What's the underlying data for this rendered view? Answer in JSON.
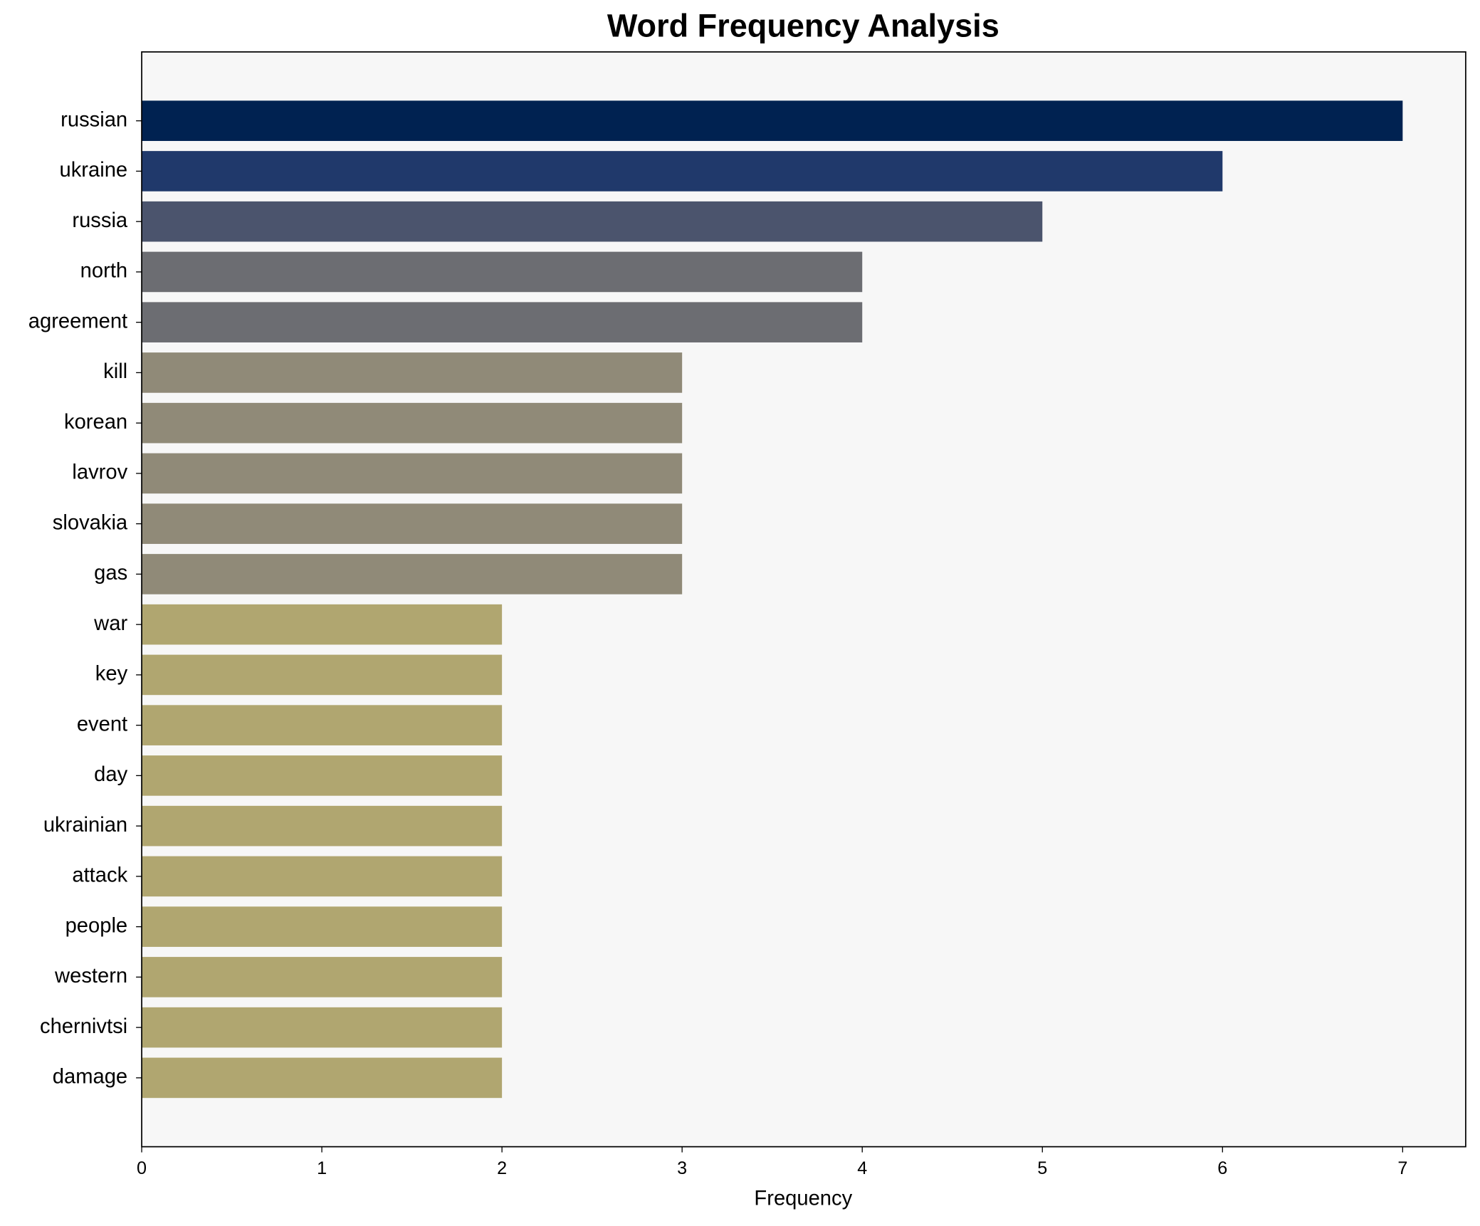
{
  "chart_data": {
    "type": "barh",
    "title": "Word Frequency Analysis",
    "x_label": "Frequency",
    "categories": [
      "russian",
      "ukraine",
      "russia",
      "north",
      "agreement",
      "kill",
      "korean",
      "lavrov",
      "slovakia",
      "gas",
      "war",
      "key",
      "event",
      "day",
      "ukrainian",
      "attack",
      "people",
      "western",
      "chernivtsi",
      "damage"
    ],
    "values": [
      7,
      6,
      5,
      4,
      4,
      3,
      3,
      3,
      3,
      3,
      2,
      2,
      2,
      2,
      2,
      2,
      2,
      2,
      2,
      2
    ],
    "colors": [
      "#002251",
      "#20396b",
      "#4b546d",
      "#6c6d72",
      "#6c6d72",
      "#908a78",
      "#908a78",
      "#908a78",
      "#908a78",
      "#908a78",
      "#b0a670",
      "#b0a670",
      "#b0a670",
      "#b0a670",
      "#b0a670",
      "#b0a670",
      "#b0a670",
      "#b0a670",
      "#b0a670",
      "#b0a670"
    ],
    "xlim": [
      0,
      7.35
    ],
    "xticks": [
      0,
      1,
      2,
      3,
      4,
      5,
      6,
      7
    ],
    "grid": false
  }
}
